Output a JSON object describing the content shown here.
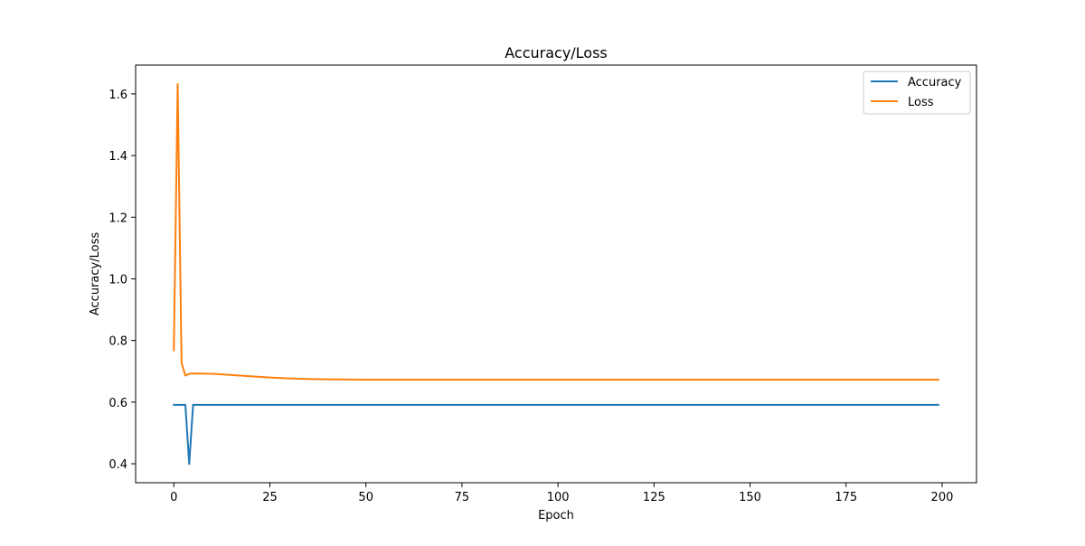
{
  "chart_data": {
    "type": "line",
    "title": "Accuracy/Loss",
    "xlabel": "Epoch",
    "ylabel": "Accuracy/Loss",
    "xlim": [
      -9.95,
      208.95
    ],
    "ylim": [
      0.3385,
      1.6936
    ],
    "xticks": [
      0,
      25,
      50,
      75,
      100,
      125,
      150,
      175,
      200
    ],
    "yticks": [
      0.4,
      0.6,
      0.8,
      1.0,
      1.2,
      1.4,
      1.6
    ],
    "grid": false,
    "legend_position": "top-right",
    "x_start": 0,
    "x_end": 199,
    "series": [
      {
        "name": "Accuracy",
        "color": "#1f77b4",
        "points": [
          [
            0,
            0.591
          ],
          [
            1,
            0.591
          ],
          [
            2,
            0.591
          ],
          [
            3,
            0.591
          ],
          [
            4,
            0.399
          ],
          [
            5,
            0.591
          ],
          [
            199,
            0.591
          ]
        ]
      },
      {
        "name": "Loss",
        "color": "#ff7f0e",
        "points": [
          [
            0,
            0.768
          ],
          [
            1,
            1.632
          ],
          [
            2,
            0.728
          ],
          [
            3,
            0.686
          ],
          [
            4,
            0.692
          ],
          [
            5,
            0.693
          ],
          [
            10,
            0.692
          ],
          [
            15,
            0.688
          ],
          [
            20,
            0.684
          ],
          [
            25,
            0.68
          ],
          [
            30,
            0.677
          ],
          [
            35,
            0.675
          ],
          [
            40,
            0.674
          ],
          [
            50,
            0.673
          ],
          [
            199,
            0.673
          ]
        ]
      }
    ]
  }
}
